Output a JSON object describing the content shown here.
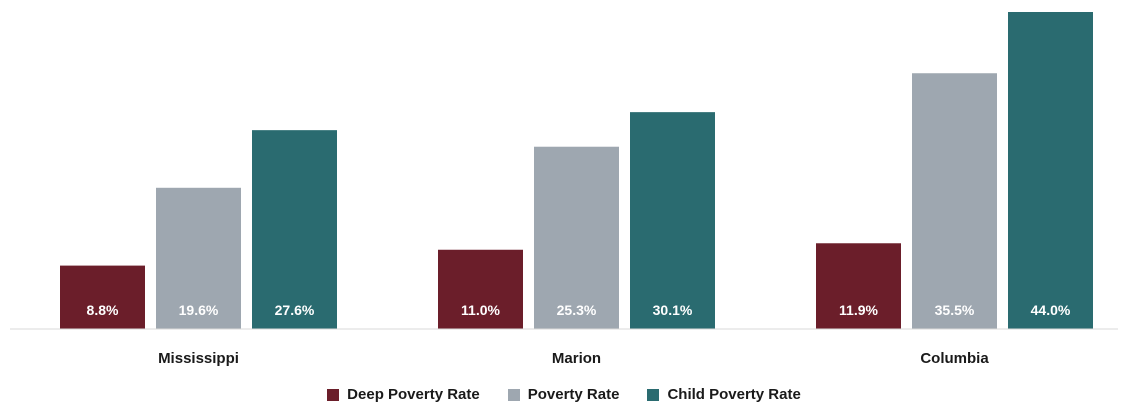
{
  "chart_data": {
    "type": "bar",
    "categories": [
      "Mississippi",
      "Marion",
      "Columbia"
    ],
    "series": [
      {
        "name": "Deep Poverty Rate",
        "color": "#6b1e2a",
        "values": [
          8.8,
          11.0,
          11.9
        ],
        "labels": [
          "8.8%",
          "11.0%",
          "11.9%"
        ]
      },
      {
        "name": "Poverty Rate",
        "color": "#9ea7b0",
        "values": [
          19.6,
          25.3,
          35.5
        ],
        "labels": [
          "19.6%",
          "25.3%",
          "35.5%"
        ]
      },
      {
        "name": "Child Poverty Rate",
        "color": "#2a6b70",
        "values": [
          27.6,
          30.1,
          44.0
        ],
        "labels": [
          "27.6%",
          "30.1%",
          "44.0%"
        ]
      }
    ],
    "title": "",
    "xlabel": "",
    "ylabel": "",
    "ylim": [
      0,
      44
    ],
    "grid": false,
    "legend_position": "bottom"
  }
}
